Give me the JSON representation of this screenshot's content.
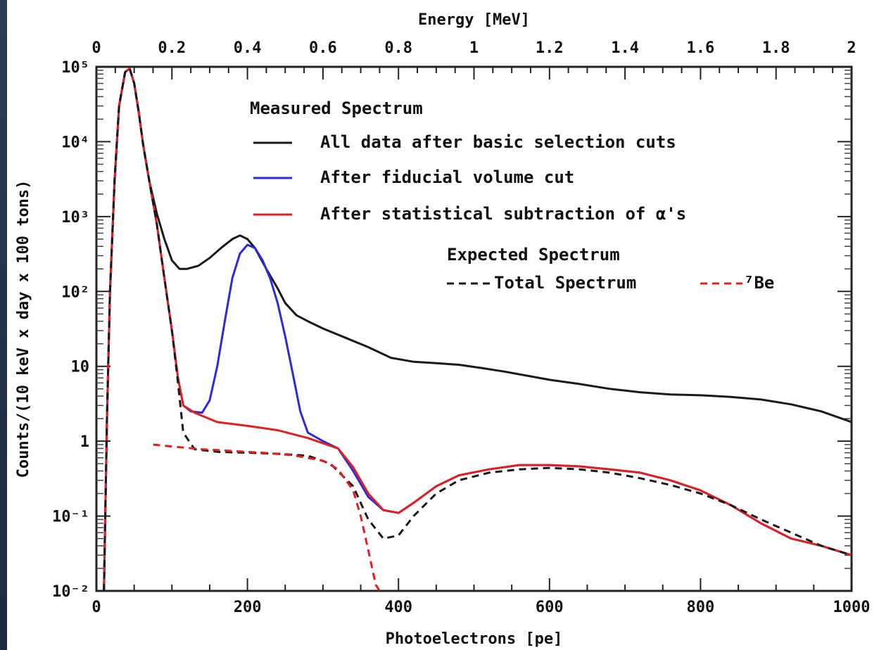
{
  "chart_data": {
    "type": "line",
    "xlabel": "Photoelectrons [pe]",
    "ylabel": "Counts/(10 keV x day x 100 tons)",
    "x2label": "Energy [MeV]",
    "xlim": [
      0,
      1000
    ],
    "ylim": [
      0.01,
      100000
    ],
    "y_scale": "log",
    "x_ticks": [
      "0",
      "200",
      "400",
      "600",
      "800",
      "1000"
    ],
    "x2_ticks": [
      "0",
      "0.2",
      "0.4",
      "0.6",
      "0.8",
      "1",
      "1.2",
      "1.4",
      "1.6",
      "1.8",
      "2"
    ],
    "x2lim": [
      0,
      2
    ],
    "y_ticks": [
      {
        "value": 100000,
        "label": "10⁵"
      },
      {
        "value": 10000,
        "label": "10⁴"
      },
      {
        "value": 1000,
        "label": "10³"
      },
      {
        "value": 100,
        "label": "10²"
      },
      {
        "value": 10,
        "label": "10"
      },
      {
        "value": 1,
        "label": "1"
      },
      {
        "value": 0.1,
        "label": "10⁻¹"
      },
      {
        "value": 0.01,
        "label": "10⁻²"
      }
    ],
    "legend": {
      "measured_header": "Measured Spectrum",
      "expected_header": "Expected Spectrum",
      "entries": [
        {
          "label": "All data after basic selection cuts",
          "color": "#1a1a1a",
          "dash": false
        },
        {
          "label": "After fiducial volume cut",
          "color": "#2a2ae0",
          "dash": false
        },
        {
          "label": "After statistical subtraction of α's",
          "color": "#e02020",
          "dash": false
        }
      ],
      "expected_entries": [
        {
          "label": "Total Spectrum",
          "color": "#1a1a1a",
          "dash": true
        },
        {
          "label": "⁷Be",
          "color": "#e02020",
          "dash": true
        }
      ],
      "placement": "top-right"
    },
    "series": [
      {
        "name": "All data after basic selection cuts",
        "color": "#1a1a1a",
        "style": "solid",
        "points": [
          [
            10,
            0.01
          ],
          [
            14,
            2
          ],
          [
            18,
            100
          ],
          [
            24,
            3000
          ],
          [
            30,
            30000
          ],
          [
            38,
            85000
          ],
          [
            44,
            95000
          ],
          [
            50,
            60000
          ],
          [
            56,
            25000
          ],
          [
            62,
            9000
          ],
          [
            70,
            3000
          ],
          [
            80,
            1100
          ],
          [
            90,
            500
          ],
          [
            100,
            260
          ],
          [
            110,
            200
          ],
          [
            120,
            200
          ],
          [
            135,
            220
          ],
          [
            150,
            280
          ],
          [
            165,
            380
          ],
          [
            180,
            500
          ],
          [
            190,
            560
          ],
          [
            200,
            500
          ],
          [
            210,
            380
          ],
          [
            225,
            200
          ],
          [
            240,
            110
          ],
          [
            250,
            70
          ],
          [
            265,
            48
          ],
          [
            280,
            40
          ],
          [
            300,
            32
          ],
          [
            330,
            24
          ],
          [
            360,
            18
          ],
          [
            390,
            13
          ],
          [
            420,
            11.5
          ],
          [
            450,
            11
          ],
          [
            480,
            10.5
          ],
          [
            510,
            9.5
          ],
          [
            540,
            8.5
          ],
          [
            570,
            7.5
          ],
          [
            600,
            6.6
          ],
          [
            640,
            5.8
          ],
          [
            680,
            5.0
          ],
          [
            720,
            4.5
          ],
          [
            760,
            4.2
          ],
          [
            800,
            4.1
          ],
          [
            840,
            3.9
          ],
          [
            880,
            3.6
          ],
          [
            920,
            3.1
          ],
          [
            960,
            2.5
          ],
          [
            1000,
            1.8
          ]
        ]
      },
      {
        "name": "After fiducial volume cut",
        "color": "#2a2ae0",
        "style": "solid",
        "points": [
          [
            10,
            0.01
          ],
          [
            14,
            2
          ],
          [
            18,
            100
          ],
          [
            24,
            3000
          ],
          [
            30,
            30000
          ],
          [
            38,
            85000
          ],
          [
            44,
            95000
          ],
          [
            50,
            60000
          ],
          [
            56,
            25000
          ],
          [
            62,
            9000
          ],
          [
            70,
            3000
          ],
          [
            80,
            800
          ],
          [
            90,
            150
          ],
          [
            100,
            30
          ],
          [
            108,
            7
          ],
          [
            115,
            3
          ],
          [
            125,
            2.5
          ],
          [
            140,
            2.4
          ],
          [
            150,
            3.5
          ],
          [
            160,
            10
          ],
          [
            170,
            40
          ],
          [
            180,
            150
          ],
          [
            190,
            320
          ],
          [
            200,
            420
          ],
          [
            210,
            380
          ],
          [
            220,
            260
          ],
          [
            230,
            150
          ],
          [
            240,
            70
          ],
          [
            250,
            25
          ],
          [
            260,
            8
          ],
          [
            270,
            2.5
          ],
          [
            280,
            1.3
          ],
          [
            300,
            1.0
          ],
          [
            320,
            0.8
          ],
          [
            340,
            0.4
          ],
          [
            360,
            0.18
          ],
          [
            380,
            0.12
          ],
          [
            400,
            0.11
          ],
          [
            420,
            0.15
          ],
          [
            450,
            0.25
          ],
          [
            480,
            0.35
          ],
          [
            520,
            0.42
          ],
          [
            560,
            0.48
          ],
          [
            600,
            0.48
          ],
          [
            640,
            0.46
          ],
          [
            680,
            0.42
          ],
          [
            720,
            0.38
          ],
          [
            760,
            0.3
          ],
          [
            800,
            0.22
          ],
          [
            840,
            0.14
          ],
          [
            880,
            0.08
          ],
          [
            920,
            0.05
          ],
          [
            960,
            0.04
          ],
          [
            1000,
            0.03
          ]
        ]
      },
      {
        "name": "After statistical subtraction of α's",
        "color": "#e02020",
        "style": "solid",
        "points": [
          [
            10,
            0.01
          ],
          [
            14,
            2
          ],
          [
            18,
            100
          ],
          [
            24,
            3000
          ],
          [
            30,
            30000
          ],
          [
            38,
            85000
          ],
          [
            44,
            95000
          ],
          [
            50,
            60000
          ],
          [
            56,
            25000
          ],
          [
            62,
            9000
          ],
          [
            70,
            3000
          ],
          [
            80,
            800
          ],
          [
            90,
            150
          ],
          [
            100,
            30
          ],
          [
            108,
            7
          ],
          [
            115,
            3
          ],
          [
            130,
            2.4
          ],
          [
            160,
            1.8
          ],
          [
            200,
            1.6
          ],
          [
            240,
            1.4
          ],
          [
            280,
            1.1
          ],
          [
            320,
            0.8
          ],
          [
            340,
            0.45
          ],
          [
            360,
            0.2
          ],
          [
            380,
            0.12
          ],
          [
            400,
            0.11
          ],
          [
            420,
            0.15
          ],
          [
            450,
            0.25
          ],
          [
            480,
            0.35
          ],
          [
            520,
            0.42
          ],
          [
            560,
            0.48
          ],
          [
            600,
            0.48
          ],
          [
            640,
            0.46
          ],
          [
            680,
            0.42
          ],
          [
            720,
            0.38
          ],
          [
            760,
            0.3
          ],
          [
            800,
            0.22
          ],
          [
            840,
            0.14
          ],
          [
            880,
            0.08
          ],
          [
            920,
            0.05
          ],
          [
            960,
            0.04
          ],
          [
            1000,
            0.03
          ]
        ]
      },
      {
        "name": "Total Spectrum",
        "color": "#1a1a1a",
        "style": "dashed",
        "points": [
          [
            10,
            0.01
          ],
          [
            14,
            2
          ],
          [
            18,
            100
          ],
          [
            24,
            3000
          ],
          [
            30,
            30000
          ],
          [
            38,
            85000
          ],
          [
            44,
            95000
          ],
          [
            50,
            60000
          ],
          [
            56,
            25000
          ],
          [
            62,
            9000
          ],
          [
            70,
            3000
          ],
          [
            80,
            800
          ],
          [
            90,
            150
          ],
          [
            100,
            30
          ],
          [
            108,
            6
          ],
          [
            115,
            1.3
          ],
          [
            130,
            0.78
          ],
          [
            160,
            0.72
          ],
          [
            200,
            0.7
          ],
          [
            240,
            0.68
          ],
          [
            280,
            0.64
          ],
          [
            310,
            0.5
          ],
          [
            340,
            0.25
          ],
          [
            360,
            0.09
          ],
          [
            380,
            0.05
          ],
          [
            400,
            0.055
          ],
          [
            420,
            0.1
          ],
          [
            450,
            0.2
          ],
          [
            480,
            0.3
          ],
          [
            520,
            0.38
          ],
          [
            560,
            0.42
          ],
          [
            600,
            0.44
          ],
          [
            640,
            0.42
          ],
          [
            680,
            0.38
          ],
          [
            720,
            0.32
          ],
          [
            760,
            0.26
          ],
          [
            800,
            0.2
          ],
          [
            840,
            0.14
          ],
          [
            880,
            0.09
          ],
          [
            920,
            0.06
          ],
          [
            960,
            0.04
          ],
          [
            1000,
            0.03
          ]
        ]
      },
      {
        "name": "⁷Be",
        "color": "#e02020",
        "style": "dashed",
        "points": [
          [
            75,
            0.9
          ],
          [
            100,
            0.85
          ],
          [
            140,
            0.78
          ],
          [
            180,
            0.74
          ],
          [
            220,
            0.7
          ],
          [
            260,
            0.65
          ],
          [
            300,
            0.55
          ],
          [
            320,
            0.42
          ],
          [
            340,
            0.22
          ],
          [
            350,
            0.1
          ],
          [
            360,
            0.035
          ],
          [
            370,
            0.012
          ],
          [
            375,
            0.01
          ]
        ]
      }
    ]
  }
}
